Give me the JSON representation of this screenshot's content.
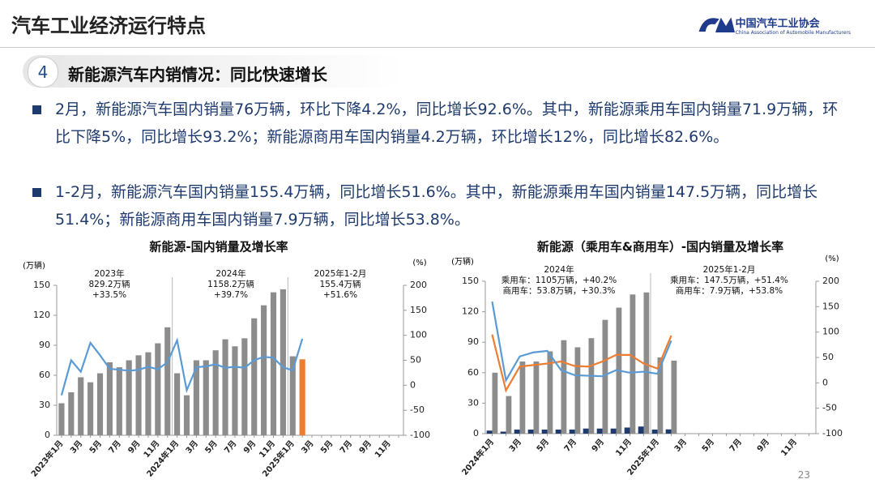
{
  "header": {
    "title": "汽车工业经济运行特点",
    "org": "中国汽车工业协会",
    "org_en": "China Association of Automobile Manufacturers"
  },
  "section": {
    "number": "4",
    "title": "新能源汽车内销情况：同比快速增长"
  },
  "bullets": [
    "2月，新能源汽车国内销量76万辆，环比下降4.2%，同比增长92.6%。其中，新能源乘用车国内销量71.9万辆，环比下降5%，同比增长93.2%；新能源商用车国内销量4.2万辆，环比增长12%，同比增长82.6%。",
    "1-2月，新能源汽车国内销量155.4万辆，同比增长51.6%。其中，新能源乘用车国内销量147.5万辆，同比增长51.4%；新能源商用车国内销量7.9万辆，同比增长53.8%。"
  ],
  "page_number": "23",
  "chart_data": [
    {
      "type": "combo",
      "title": "新能源-国内销量及增长率",
      "y_label": "(万辆)",
      "y2_label": "(%)",
      "bar_mode": "overlay",
      "categories": [
        "2023年1月",
        null,
        "3月",
        null,
        "5月",
        null,
        "7月",
        null,
        "9月",
        null,
        "11月",
        null,
        "2024年1月",
        null,
        "3月",
        null,
        "5月",
        null,
        "7月",
        null,
        "9月",
        null,
        "11月",
        null,
        "2025年1月",
        null,
        "3月",
        null,
        "5月",
        null,
        "7月",
        null,
        "9月",
        null,
        "11月",
        null
      ],
      "ylim": [
        0,
        150
      ],
      "yticks": [
        0,
        30,
        60,
        90,
        120,
        150
      ],
      "y2lim": [
        -100,
        200
      ],
      "y2ticks": [
        -100,
        -50,
        0,
        50,
        100,
        150,
        200
      ],
      "series": [
        {
          "type": "bar",
          "color": "#8c8c8c",
          "values": [
            32,
            43,
            58,
            53,
            62,
            73,
            68,
            75,
            80,
            83,
            92,
            108,
            62,
            40,
            75,
            75,
            85,
            96,
            89,
            97,
            117,
            130,
            143,
            146,
            79,
            null,
            null,
            null,
            null,
            null,
            null,
            null,
            null,
            null,
            null,
            null
          ]
        },
        {
          "type": "bar",
          "color": "#ed7d31",
          "values": [
            null,
            null,
            null,
            null,
            null,
            null,
            null,
            null,
            null,
            null,
            null,
            null,
            null,
            null,
            null,
            null,
            null,
            null,
            null,
            null,
            null,
            null,
            null,
            null,
            null,
            76,
            null,
            null,
            null,
            null,
            null,
            null,
            null,
            null,
            null,
            null
          ]
        },
        {
          "type": "line",
          "axis": "y2",
          "color": "#5b9bd5",
          "values": [
            -20,
            50,
            27,
            85,
            60,
            33,
            31,
            29,
            31,
            37,
            32,
            46,
            90,
            -10,
            36,
            38,
            42,
            35,
            37,
            35,
            50,
            57,
            55,
            36,
            30,
            93,
            null,
            null,
            null,
            null,
            null,
            null,
            null,
            null,
            null,
            null
          ]
        }
      ],
      "annotations": [
        [
          "2023年",
          "829.2万辆",
          "+33.5%"
        ],
        [
          "2024年",
          "1158.2万辆",
          "+39.7%"
        ],
        [
          "2025年1-2月",
          "155.4万辆",
          "+51.6%"
        ]
      ]
    },
    {
      "type": "combo",
      "title": "新能源（乘用车&商用车）-国内销量及增长率",
      "y_label": "(万辆)",
      "y2_label": "(%)",
      "bar_mode": "group",
      "categories": [
        "2024年1月",
        null,
        "3月",
        null,
        "5月",
        null,
        "7月",
        null,
        "9月",
        null,
        "11月",
        null,
        "2025年1月",
        null,
        "3月",
        null,
        "5月",
        null,
        "7月",
        null,
        "9月",
        null,
        "11月",
        null
      ],
      "ylim": [
        0,
        150
      ],
      "yticks": [
        0,
        30,
        60,
        90,
        120,
        150
      ],
      "y2lim": [
        -100,
        200
      ],
      "y2ticks": [
        -100,
        -50,
        0,
        50,
        100,
        150,
        200
      ],
      "series": [
        {
          "type": "bar",
          "color": "#1f3b6e",
          "values": [
            3,
            2,
            4,
            4,
            4,
            4,
            4,
            5,
            5,
            5,
            6,
            7,
            4,
            4.2,
            null,
            null,
            null,
            null,
            null,
            null,
            null,
            null,
            null,
            null
          ]
        },
        {
          "type": "bar",
          "color": "#8c8c8c",
          "values": [
            60,
            37,
            71,
            71,
            81,
            92,
            85,
            94,
            112,
            124,
            137,
            139,
            75,
            71.9,
            null,
            null,
            null,
            null,
            null,
            null,
            null,
            null,
            null,
            null
          ]
        },
        {
          "type": "line",
          "axis": "y2",
          "color": "#ed7d31",
          "values": [
            95,
            -15,
            32,
            35,
            38,
            42,
            33,
            32,
            42,
            55,
            55,
            38,
            28,
            93,
            null,
            null,
            null,
            null,
            null,
            null,
            null,
            null,
            null,
            null
          ]
        },
        {
          "type": "line",
          "axis": "y2",
          "color": "#5b9bd5",
          "values": [
            160,
            5,
            52,
            60,
            63,
            25,
            15,
            14,
            13,
            25,
            20,
            22,
            18,
            83,
            null,
            null,
            null,
            null,
            null,
            null,
            null,
            null,
            null,
            null
          ]
        }
      ],
      "annotations": [
        [
          "2024年",
          "乘用车：1105万辆，+40.2%",
          "商用车：53.8万辆，+30.3%"
        ],
        [
          "2025年1-2月",
          "乘用车：147.5万辆，+51.4%",
          "商用车：7.9万辆，+53.8%"
        ]
      ]
    }
  ]
}
